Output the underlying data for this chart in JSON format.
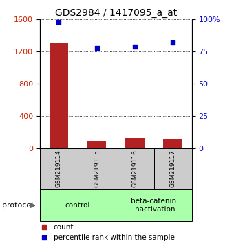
{
  "title": "GDS2984 / 1417095_a_at",
  "samples": [
    "GSM219114",
    "GSM219115",
    "GSM219116",
    "GSM219117"
  ],
  "bar_values": [
    1300,
    90,
    130,
    110
  ],
  "dot_values_pct": [
    98,
    78,
    79,
    82
  ],
  "bar_color": "#b22222",
  "dot_color": "#0000cc",
  "ylim_left": [
    0,
    1600
  ],
  "ylim_right": [
    0,
    100
  ],
  "yticks_left": [
    0,
    400,
    800,
    1200,
    1600
  ],
  "yticks_right": [
    0,
    25,
    50,
    75,
    100
  ],
  "ytick_labels_right": [
    "0",
    "25",
    "50",
    "75",
    "100%"
  ],
  "group_color": "#aaffaa",
  "group_labels": [
    "control",
    "beta-catenin\ninactivation"
  ],
  "protocol_label": "protocol",
  "legend_count_label": "count",
  "legend_pct_label": "percentile rank within the sample",
  "bg_color": "#ffffff",
  "tick_label_color_left": "#cc2200",
  "tick_label_color_right": "#0000cc",
  "bar_width": 0.5,
  "sample_box_color": "#cccccc",
  "title_fontsize": 10
}
